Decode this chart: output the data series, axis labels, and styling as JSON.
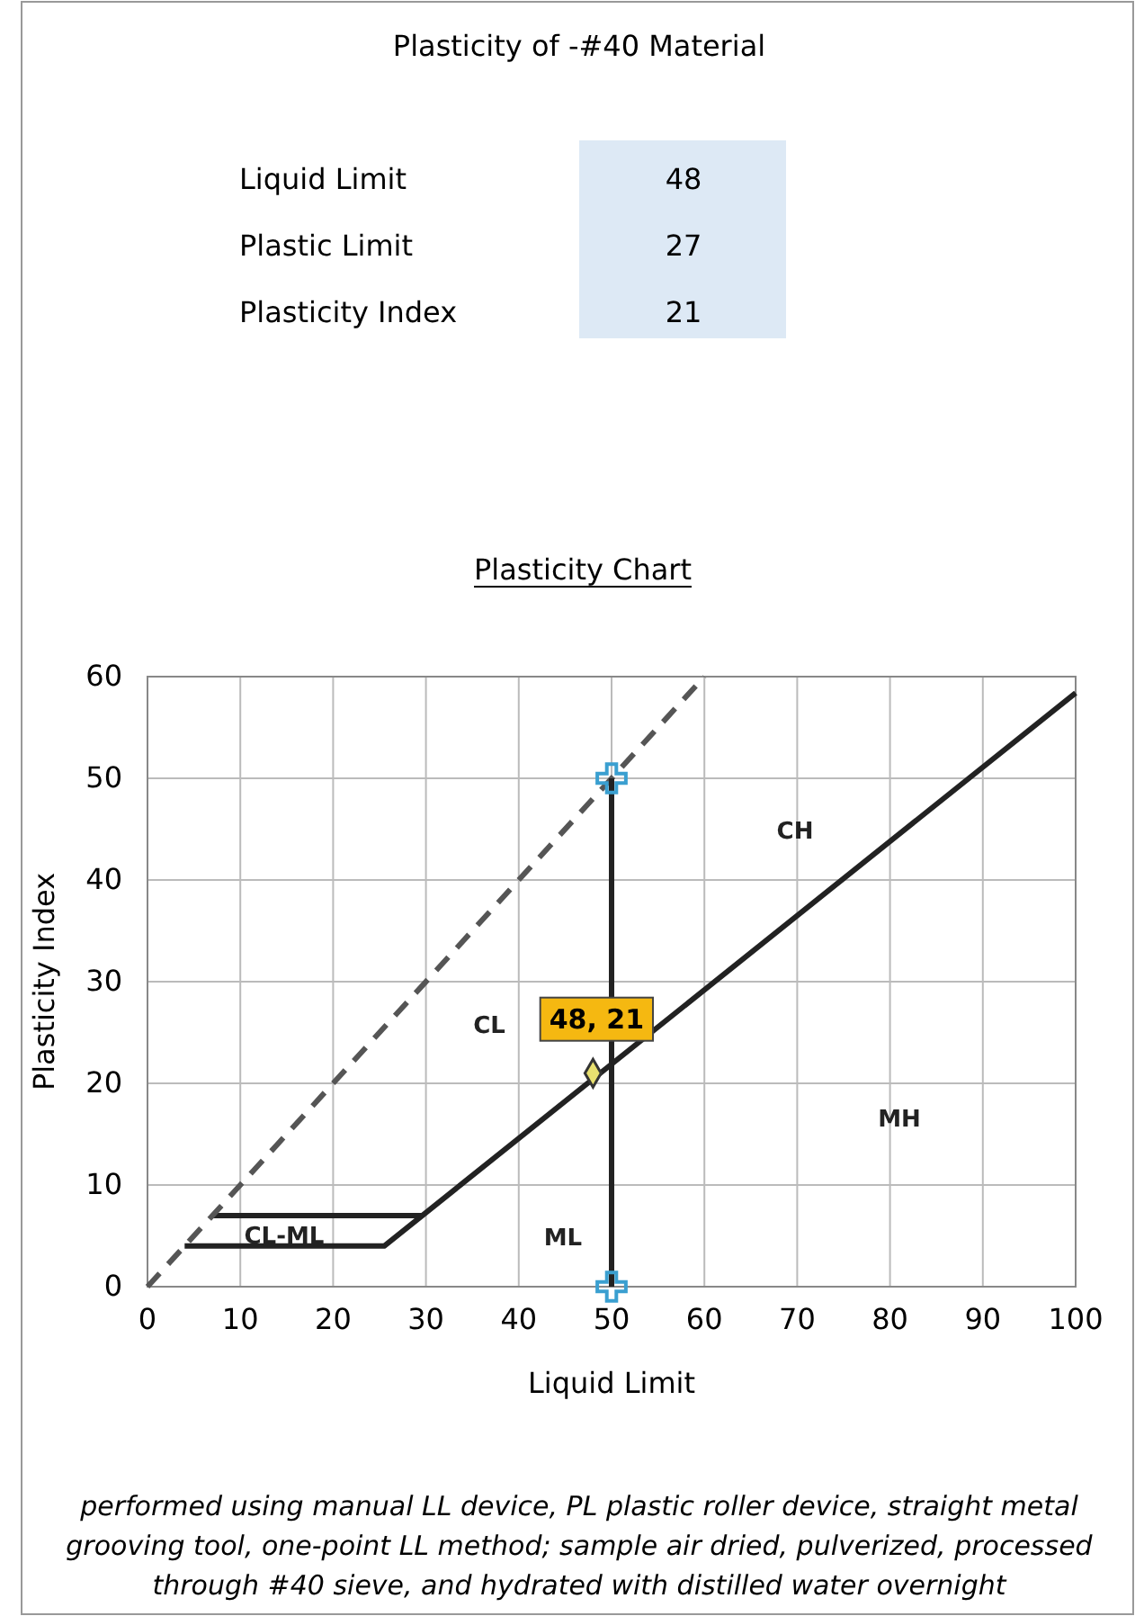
{
  "chart_data": [
    {
      "type": "other",
      "title": "Plasticity of -#40 Material",
      "categories": [
        "Liquid Limit",
        "Plastic Limit",
        "Plasticity Index"
      ],
      "values": [
        48,
        27,
        21
      ],
      "data_labels": true
    },
    {
      "type": "line",
      "title": "Plasticity Chart",
      "xlabel": "Liquid Limit",
      "ylabel": "Plasticity Index",
      "xlim": [
        0,
        100
      ],
      "ylim": [
        0,
        60
      ],
      "xticks": [
        0,
        10,
        20,
        30,
        40,
        50,
        60,
        70,
        80,
        90,
        100
      ],
      "yticks": [
        0,
        10,
        20,
        30,
        40,
        50,
        60
      ],
      "grid": true,
      "series": [
        {
          "type": "line",
          "color": "#222222",
          "x": [
            4,
            25.5,
            100
          ],
          "values": [
            4,
            4,
            58.4
          ]
        },
        {
          "type": "line",
          "color": "#222222",
          "x": [
            7,
            29.6
          ],
          "values": [
            7,
            7
          ]
        },
        {
          "type": "line",
          "color": "#555555",
          "line_style": "dashed",
          "x": [
            0,
            60
          ],
          "values": [
            0,
            60
          ]
        },
        {
          "type": "line",
          "color": "#222222",
          "x": [
            50,
            50
          ],
          "values": [
            0,
            50
          ]
        },
        {
          "type": "scatter",
          "color": "#3a9fd0",
          "marker": "cross",
          "x": [
            50,
            50
          ],
          "values": [
            0,
            50
          ]
        },
        {
          "type": "scatter",
          "color": "#e8e070",
          "marker": "diamond",
          "x": [
            48
          ],
          "values": [
            21
          ],
          "value_labels": [
            "48, 21"
          ]
        }
      ],
      "annotations": [
        "CL",
        "CH",
        "MH",
        "ML",
        "CL-ML",
        "performed using manual LL device, PL plastic roller device, straight metal grooving tool, one-point LL method; sample air dried, pulverized, processed through #40 sieve, and hydrated with distilled water overnight"
      ]
    }
  ]
}
